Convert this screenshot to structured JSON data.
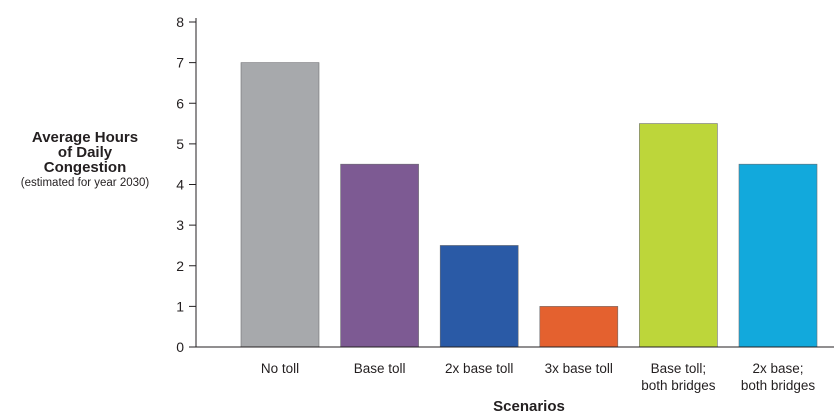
{
  "chart_data": {
    "type": "bar",
    "title": "",
    "ylabel": {
      "lines": [
        "Average Hours",
        "of Daily",
        "Congestion"
      ],
      "note": "(estimated for year 2030)"
    },
    "xlabel": "Scenarios",
    "ylim": [
      0,
      8
    ],
    "yticks": [
      0,
      1,
      2,
      3,
      4,
      5,
      6,
      7,
      8
    ],
    "categories": [
      [
        "No toll"
      ],
      [
        "Base toll"
      ],
      [
        "2x base toll"
      ],
      [
        "3x base toll"
      ],
      [
        "Base toll;",
        "both bridges"
      ],
      [
        "2x base;",
        "both bridges"
      ]
    ],
    "values": [
      7,
      4.5,
      2.5,
      1,
      5.5,
      4.5
    ],
    "colors": [
      "#a7a9ac",
      "#7d5a93",
      "#2a5aa6",
      "#e4612f",
      "#bdd63a",
      "#12a9dc"
    ],
    "grid": false
  }
}
